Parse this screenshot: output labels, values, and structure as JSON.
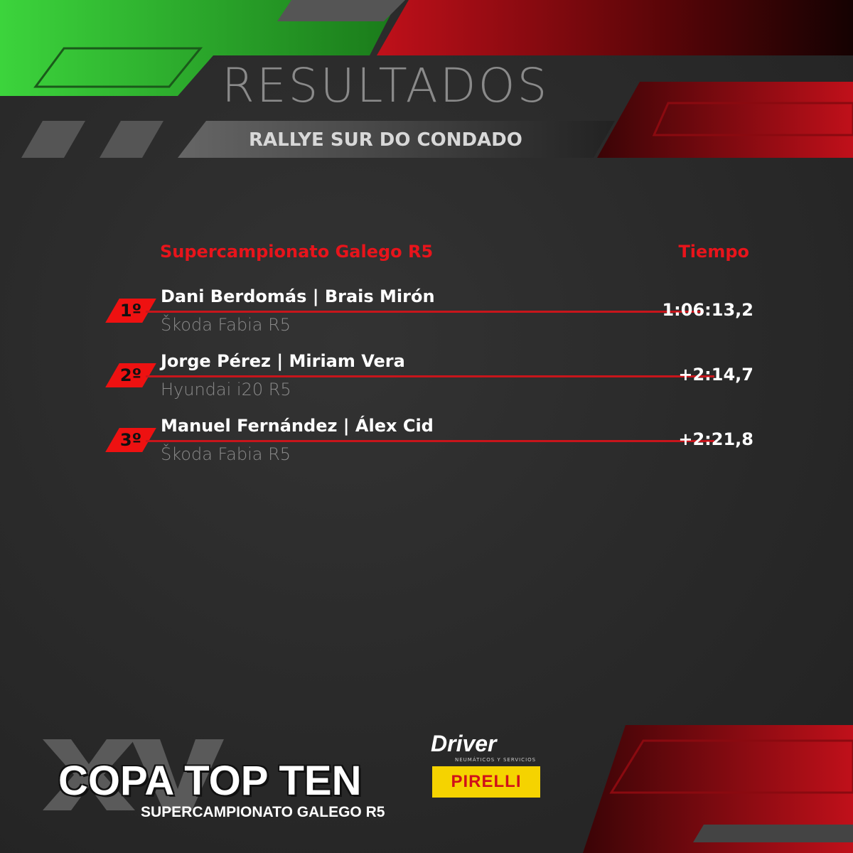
{
  "header": {
    "title": "RESULTADOS",
    "subtitle": "RALLYE SUR DO CONDADO"
  },
  "table": {
    "category_header": "Supercampionato Galego R5",
    "time_header": "Tiempo",
    "rows": [
      {
        "position": "1º",
        "crew": "Dani Berdomás | Brais Mirón",
        "car": "Škoda Fabia R5",
        "time": "1:06:13,2"
      },
      {
        "position": "2º",
        "crew": "Jorge Pérez | Miriam Vera",
        "car": "Hyundai i20 R5",
        "time": "+2:14,7"
      },
      {
        "position": "3º",
        "crew": "Manuel Fernández | Álex Cid",
        "car": "Škoda Fabia R5",
        "time": "+2:21,8"
      }
    ]
  },
  "footer": {
    "edition": "XV",
    "brand": "COPA TOP TEN",
    "championship": "SUPERCAMPIONATO GALEGO R5",
    "sponsors": {
      "driver": "Driver",
      "driver_tagline": "NEUMÁTICOS Y SERVICIOS",
      "pirelli": "PIRELLI"
    }
  },
  "colors": {
    "accent_red": "#e8141b",
    "green": "#2fc42f",
    "background": "#2a2a2a",
    "pirelli_yellow": "#f5d300"
  }
}
